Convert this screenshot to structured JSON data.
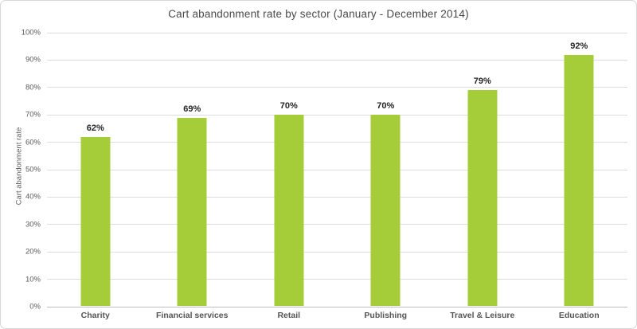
{
  "chart_data": {
    "type": "bar",
    "title": "Cart abandonment rate by sector (January - December 2014)",
    "xlabel": "",
    "ylabel": "Cart abandonment rate",
    "categories": [
      "Charity",
      "Financial services",
      "Retail",
      "Publishing",
      "Travel & Leisure",
      "Education"
    ],
    "values": [
      62,
      69,
      70,
      70,
      79,
      92
    ],
    "data_labels": [
      "62%",
      "69%",
      "70%",
      "70%",
      "79%",
      "92%"
    ],
    "ylim": [
      0,
      100
    ],
    "ytick_step": 10,
    "ytick_labels": [
      "0%",
      "10%",
      "20%",
      "30%",
      "40%",
      "50%",
      "60%",
      "70%",
      "80%",
      "90%",
      "100%"
    ],
    "grid": true,
    "legend_position": "none",
    "bar_color": "#a5cd39",
    "gridline_color": "#dcdcdc",
    "axis_line_color": "#bdbdbd",
    "title_color": "#494949",
    "tick_color": "#5a5a5a",
    "data_label_color": "#242424"
  }
}
